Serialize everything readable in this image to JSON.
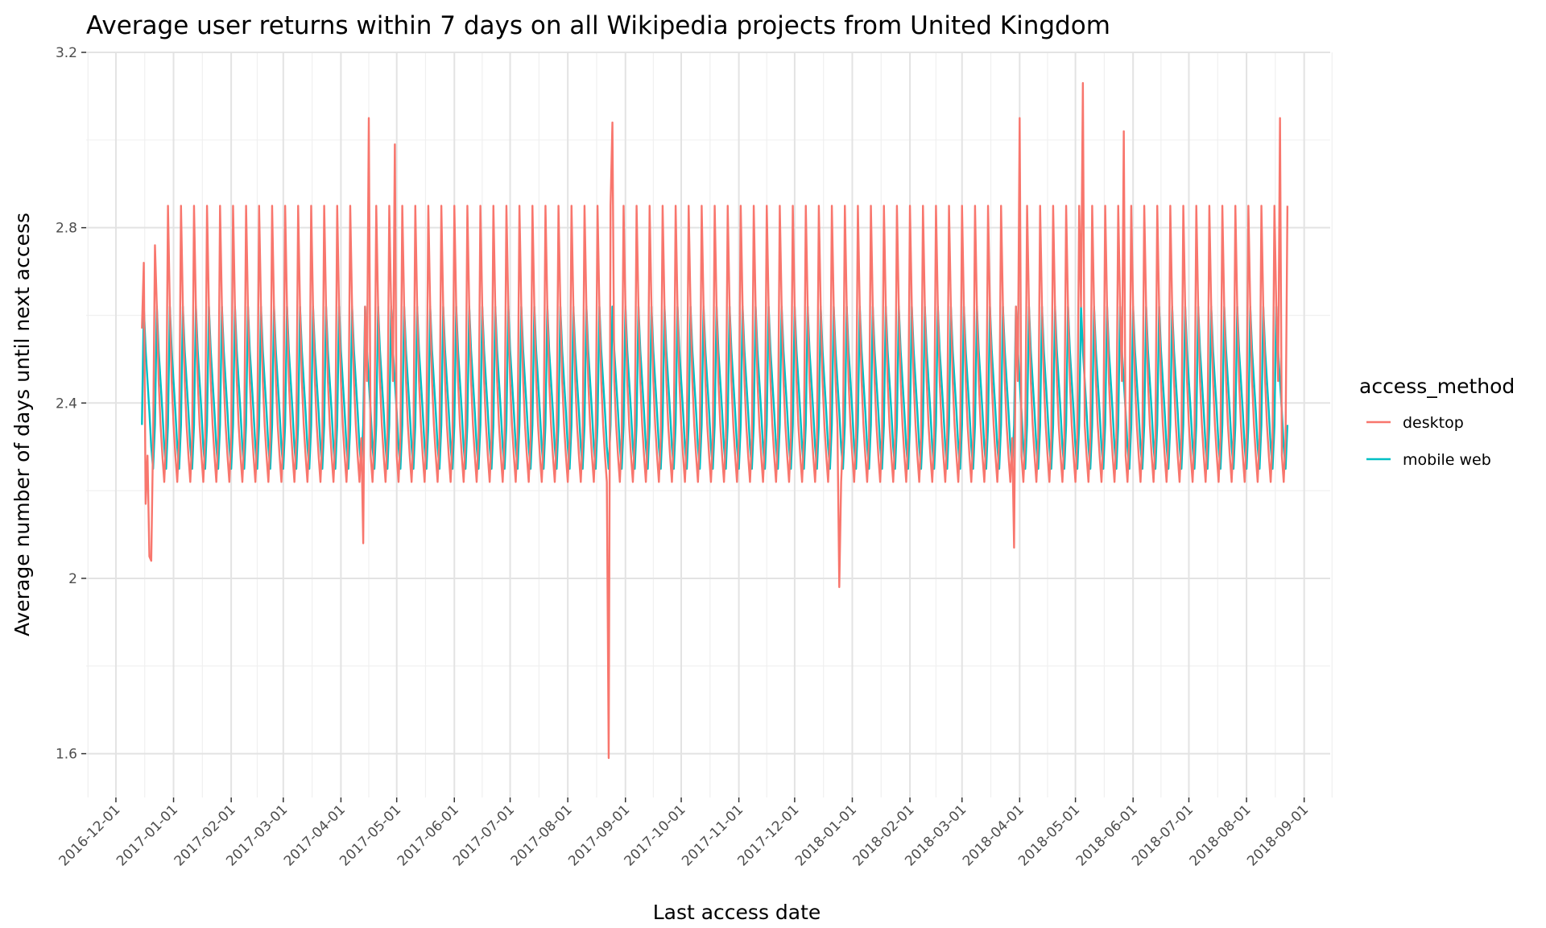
{
  "chart_data": {
    "type": "line",
    "title": "Average user returns within 7 days on all Wikipedia projects from United Kingdom",
    "xlabel": "Last access date",
    "ylabel": "Average number of days until next access",
    "ylim": [
      1.5,
      3.2
    ],
    "yticks": [
      1.6,
      2,
      2.4,
      2.8,
      3.2
    ],
    "ytick_labels": [
      "1.6",
      "2",
      "2.4",
      "2.8",
      "3.2"
    ],
    "x_start": "2016-12-15",
    "x_end": "2018-08-23",
    "xlim": [
      "2016-11-15",
      "2018-09-15"
    ],
    "xticks": [
      "2016-12-01",
      "2017-01-01",
      "2017-02-01",
      "2017-03-01",
      "2017-04-01",
      "2017-05-01",
      "2017-06-01",
      "2017-07-01",
      "2017-08-01",
      "2017-09-01",
      "2017-10-01",
      "2017-11-01",
      "2017-12-01",
      "2018-01-01",
      "2018-02-01",
      "2018-03-01",
      "2018-04-01",
      "2018-05-01",
      "2018-06-01",
      "2018-07-01",
      "2018-08-01",
      "2018-09-01"
    ],
    "grid": true,
    "legend": {
      "title": "access_method",
      "position": "right"
    },
    "series": [
      {
        "name": "desktop",
        "color": "#F8766D",
        "weekly_pattern": [
          2.85,
          2.62,
          2.45,
          2.35,
          2.28,
          2.22,
          2.32
        ],
        "outliers": [
          {
            "date": "2016-12-15",
            "value": 2.57
          },
          {
            "date": "2016-12-16",
            "value": 2.72
          },
          {
            "date": "2016-12-17",
            "value": 2.17
          },
          {
            "date": "2016-12-18",
            "value": 2.28
          },
          {
            "date": "2016-12-19",
            "value": 2.05
          },
          {
            "date": "2016-12-20",
            "value": 2.04
          },
          {
            "date": "2016-12-22",
            "value": 2.76
          },
          {
            "date": "2017-04-13",
            "value": 2.08
          },
          {
            "date": "2017-04-16",
            "value": 3.05
          },
          {
            "date": "2017-04-30",
            "value": 2.99
          },
          {
            "date": "2017-08-23",
            "value": 1.59
          },
          {
            "date": "2017-08-25",
            "value": 3.04
          },
          {
            "date": "2017-12-25",
            "value": 1.98
          },
          {
            "date": "2018-03-29",
            "value": 2.07
          },
          {
            "date": "2018-04-01",
            "value": 3.05
          },
          {
            "date": "2018-05-05",
            "value": 3.13
          },
          {
            "date": "2018-05-27",
            "value": 3.02
          },
          {
            "date": "2018-08-19",
            "value": 3.05
          }
        ]
      },
      {
        "name": "mobile web",
        "color": "#00BFC4",
        "weekly_pattern": [
          2.35,
          2.62,
          2.52,
          2.45,
          2.38,
          2.3,
          2.25
        ]
      }
    ]
  }
}
